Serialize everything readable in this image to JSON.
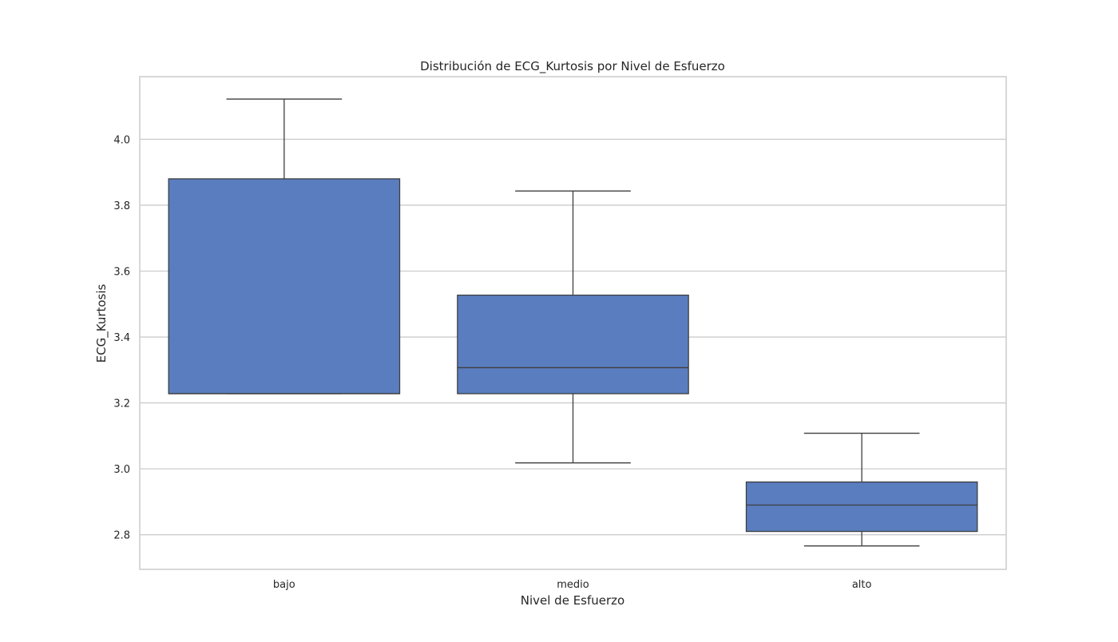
{
  "chart_data": {
    "type": "box",
    "title": "Distribución de ECG_Kurtosis por Nivel de Esfuerzo",
    "xlabel": "Nivel de Esfuerzo",
    "ylabel": "ECG_Kurtosis",
    "categories": [
      "bajo",
      "medio",
      "alto"
    ],
    "ylim": [
      2.695,
      4.19
    ],
    "yticks": [
      2.8,
      3.0,
      3.2,
      3.4,
      3.6,
      3.8,
      4.0
    ],
    "ytick_labels": [
      "2.8",
      "3.0",
      "3.2",
      "3.4",
      "3.6",
      "3.8",
      "4.0"
    ],
    "grid": true,
    "boxes": [
      {
        "category": "bajo",
        "whisker_low": 3.228,
        "q1": 3.228,
        "median": 3.228,
        "q3": 3.88,
        "whisker_high": 4.122
      },
      {
        "category": "medio",
        "whisker_low": 3.018,
        "q1": 3.228,
        "median": 3.307,
        "q3": 3.527,
        "whisker_high": 3.843
      },
      {
        "category": "alto",
        "whisker_low": 2.766,
        "q1": 2.81,
        "median": 2.89,
        "q3": 2.96,
        "whisker_high": 3.108
      }
    ],
    "colors": {
      "box_fill": "#5a7dbf",
      "box_edge": "#3f3f3f",
      "grid": "#cccccc",
      "axes_edge": "#cccccc"
    }
  }
}
